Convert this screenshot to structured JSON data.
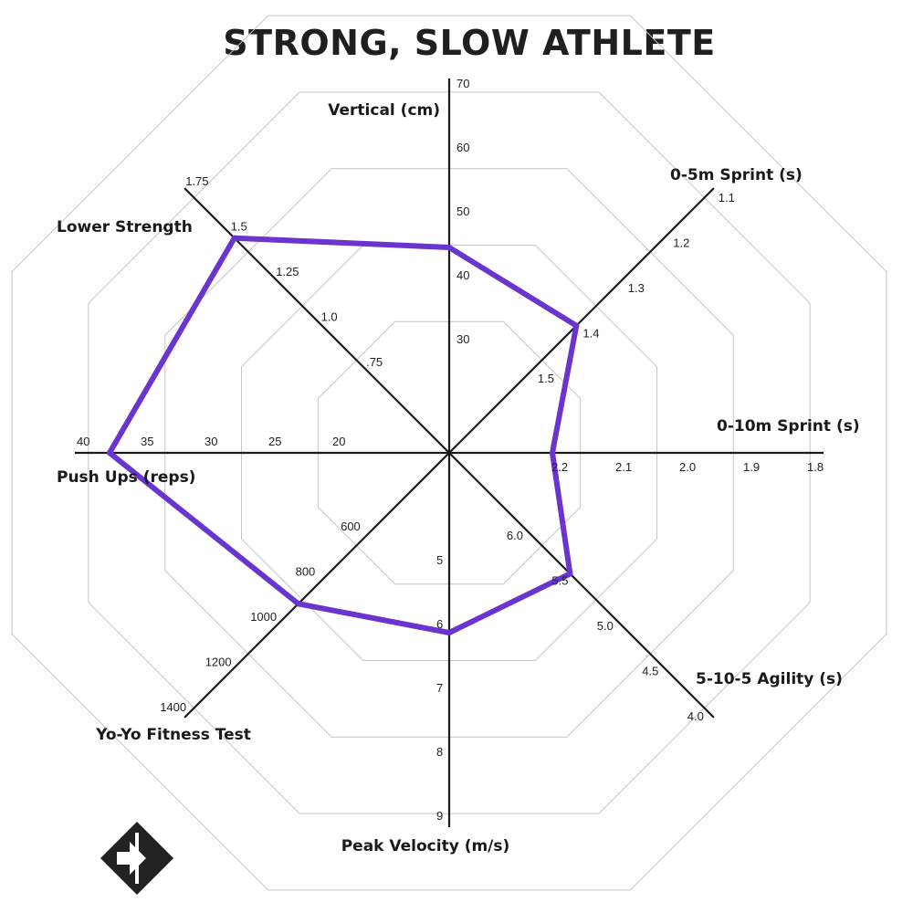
{
  "chart_data": {
    "type": "radar",
    "title": "STRONG, SLOW ATHLETE",
    "colors": {
      "series": "#6a35cf",
      "axis": "#1a1a1a",
      "grid": "#c4c4c4",
      "text": "#1f1f1f"
    },
    "axes": [
      {
        "label": "Vertical (cm)",
        "angle": 90,
        "ticks": [
          "30",
          "40",
          "50",
          "60",
          "70"
        ],
        "tick_values": [
          30,
          40,
          50,
          60,
          70
        ]
      },
      {
        "label": "0-5m Sprint (s)",
        "angle": 45,
        "ticks": [
          "1.5",
          "1.4",
          "1.3",
          "1.2",
          "1.1"
        ],
        "tick_values": [
          1.5,
          1.4,
          1.3,
          1.2,
          1.1
        ]
      },
      {
        "label": "0-10m Sprint (s)",
        "angle": 0,
        "ticks": [
          "2.2",
          "2.1",
          "2.0",
          "1.9",
          "1.8"
        ],
        "tick_values": [
          2.2,
          2.1,
          2.0,
          1.9,
          1.8
        ]
      },
      {
        "label": "5-10-5 Agility (s)",
        "angle": -45,
        "ticks": [
          "6.0",
          "5.5",
          "5.0",
          "4.5",
          "4.0"
        ],
        "tick_values": [
          6.0,
          5.5,
          5.0,
          4.5,
          4.0
        ]
      },
      {
        "label": "Peak Velocity (m/s)",
        "angle": -90,
        "ticks": [
          "5",
          "6",
          "7",
          "8",
          "9"
        ],
        "tick_values": [
          5,
          6,
          7,
          8,
          9
        ]
      },
      {
        "label": "Yo-Yo Fitness Test",
        "angle": -135,
        "ticks": [
          "600",
          "800",
          "1000",
          "1200",
          "1400"
        ],
        "tick_values": [
          600,
          800,
          1000,
          1200,
          1400
        ]
      },
      {
        "label": "Push Ups (reps)",
        "angle": 180,
        "ticks": [
          "20",
          "25",
          "30",
          "35",
          "40"
        ],
        "tick_values": [
          20,
          25,
          30,
          35,
          40
        ]
      },
      {
        "label": "Lower Strength",
        "angle": 135,
        "ticks": [
          ".75",
          "1.0",
          "1.25",
          "1.5",
          "1.75"
        ],
        "tick_values": [
          0.75,
          1.0,
          1.25,
          1.5,
          1.75
        ]
      }
    ],
    "series": [
      {
        "values": [
          45,
          1.39,
          2.21,
          5.52,
          6.1,
          925,
          38,
          1.51
        ]
      }
    ],
    "grid": true,
    "legend": "none"
  },
  "logo": {
    "icon": "diamond-arrow-logo"
  }
}
